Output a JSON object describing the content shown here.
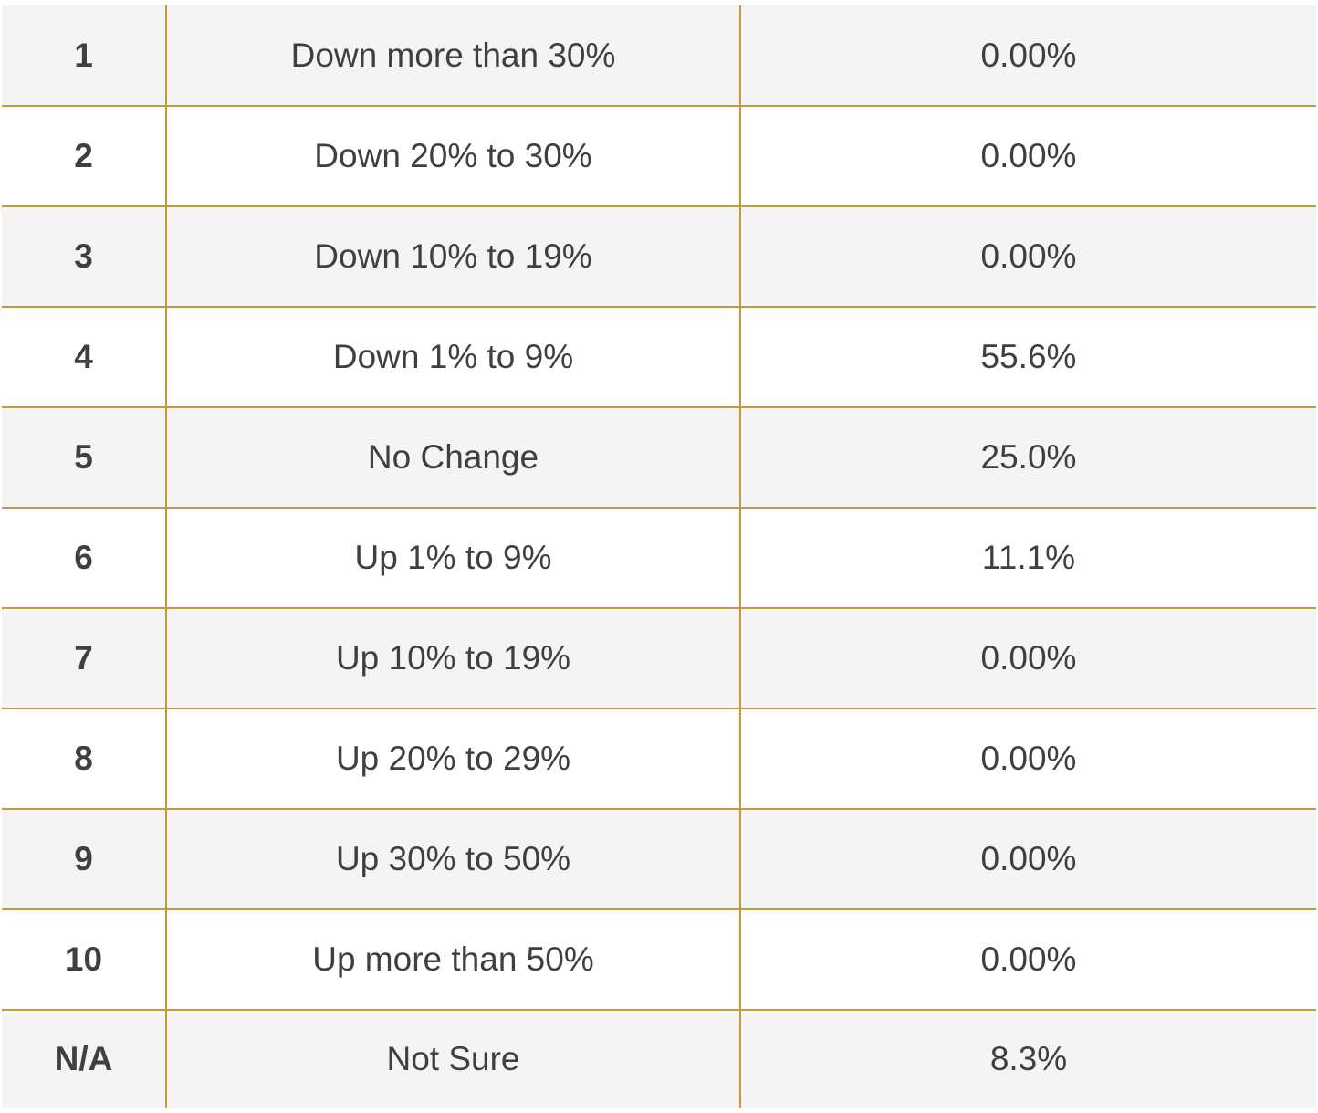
{
  "table": {
    "rows": [
      {
        "rank": "1",
        "label": "Down more than 30%",
        "value": "0.00%"
      },
      {
        "rank": "2",
        "label": "Down 20% to 30%",
        "value": "0.00%"
      },
      {
        "rank": "3",
        "label": "Down 10% to 19%",
        "value": "0.00%"
      },
      {
        "rank": "4",
        "label": "Down 1% to 9%",
        "value": "55.6%"
      },
      {
        "rank": "5",
        "label": "No Change",
        "value": "25.0%"
      },
      {
        "rank": "6",
        "label": "Up 1% to 9%",
        "value": "11.1%"
      },
      {
        "rank": "7",
        "label": "Up 10% to 19%",
        "value": "0.00%"
      },
      {
        "rank": "8",
        "label": "Up 20% to 29%",
        "value": "0.00%"
      },
      {
        "rank": "9",
        "label": "Up 30% to 50%",
        "value": "0.00%"
      },
      {
        "rank": "10",
        "label": "Up more than 50%",
        "value": "0.00%"
      },
      {
        "rank": "N/A",
        "label": "Not Sure",
        "value": "8.3%"
      }
    ]
  },
  "colors": {
    "border": "#c29a3b",
    "row_shaded": "#f4f4f4",
    "text": "#3f3f3f"
  }
}
